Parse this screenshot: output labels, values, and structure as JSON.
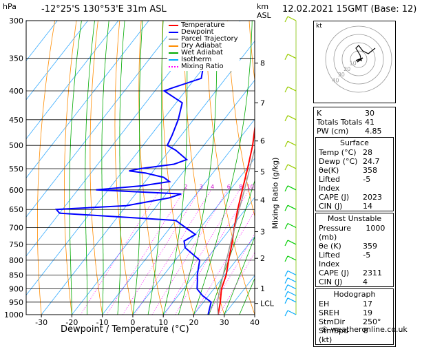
{
  "header": {
    "location": "-12°25'S  130°53'E  31m  ASL",
    "datetime": "12.02.2021  15GMT  (Base: 12)",
    "left_unit": "hPa",
    "right_unit_km": "km",
    "right_unit_asl": "ASL",
    "mixing_label": "Mixing Ratio (g/kg)",
    "xlabel": "Dewpoint / Temperature (°C)",
    "copyright": "© weatheronline.co.uk"
  },
  "legend": [
    {
      "label": "Temperature",
      "color": "#ff0000",
      "style": "solid"
    },
    {
      "label": "Dewpoint",
      "color": "#0000ff",
      "style": "solid"
    },
    {
      "label": "Parcel Trajectory",
      "color": "#999999",
      "style": "solid"
    },
    {
      "label": "Dry Adiabat",
      "color": "#ff8c00",
      "style": "solid"
    },
    {
      "label": "Wet Adiabat",
      "color": "#00aa00",
      "style": "solid"
    },
    {
      "label": "Isotherm",
      "color": "#00aaff",
      "style": "solid"
    },
    {
      "label": "Mixing Ratio",
      "color": "#ff00ff",
      "style": "dotted"
    }
  ],
  "chart_data": {
    "type": "line",
    "title": "Skew-T log-P",
    "pressure_levels": [
      300,
      350,
      400,
      450,
      500,
      550,
      600,
      650,
      700,
      750,
      800,
      850,
      900,
      950,
      1000
    ],
    "x_ticks": [
      -30,
      -20,
      -10,
      0,
      10,
      20,
      30,
      40
    ],
    "km_ticks": [
      {
        "label": "8",
        "p": 357
      },
      {
        "label": "7",
        "p": 420
      },
      {
        "label": "6",
        "p": 491
      },
      {
        "label": "5",
        "p": 557
      },
      {
        "label": "4",
        "p": 625
      },
      {
        "label": "3",
        "p": 712
      },
      {
        "label": "2",
        "p": 794
      },
      {
        "label": "1",
        "p": 898
      },
      {
        "label": "LCL",
        "p": 955
      }
    ],
    "mixing_ratio_labels": [
      {
        "label": "1",
        "w": 1
      },
      {
        "label": "2",
        "w": 2
      },
      {
        "label": "3",
        "w": 3
      },
      {
        "label": "4",
        "w": 4
      },
      {
        "label": "6",
        "w": 6
      },
      {
        "label": "8",
        "w": 8
      },
      {
        "label": "10",
        "w": 10
      },
      {
        "label": "15",
        "w": 15
      },
      {
        "label": "20",
        "w": 20
      },
      {
        "label": "25",
        "w": 25
      }
    ],
    "series": [
      {
        "name": "Temperature",
        "color": "#ff0000",
        "points": [
          [
            1000,
            28
          ],
          [
            950,
            25.5
          ],
          [
            900,
            22.5
          ],
          [
            850,
            20.5
          ],
          [
            800,
            17.5
          ],
          [
            750,
            14.5
          ],
          [
            700,
            11
          ],
          [
            650,
            7.5
          ],
          [
            600,
            4
          ],
          [
            550,
            0.3
          ],
          [
            500,
            -4
          ],
          [
            450,
            -9.5
          ],
          [
            400,
            -16
          ],
          [
            350,
            -22.5
          ],
          [
            320,
            -27.5
          ]
        ]
      },
      {
        "name": "Dewpoint",
        "color": "#0000ff",
        "points": [
          [
            1000,
            24.7
          ],
          [
            950,
            22.5
          ],
          [
            925,
            18
          ],
          [
            900,
            14.5
          ],
          [
            870,
            12.5
          ],
          [
            850,
            11
          ],
          [
            800,
            8
          ],
          [
            760,
            0
          ],
          [
            740,
            -2
          ],
          [
            720,
            0
          ],
          [
            700,
            -5
          ],
          [
            680,
            -10
          ],
          [
            660,
            -50
          ],
          [
            650,
            -52
          ],
          [
            640,
            -30
          ],
          [
            620,
            -18
          ],
          [
            610,
            -15
          ],
          [
            600,
            -44
          ],
          [
            590,
            -30
          ],
          [
            580,
            -22
          ],
          [
            570,
            -25
          ],
          [
            560,
            -32
          ],
          [
            555,
            -38
          ],
          [
            550,
            -35
          ],
          [
            540,
            -25
          ],
          [
            530,
            -22
          ],
          [
            510,
            -28
          ],
          [
            500,
            -32
          ],
          [
            480,
            -33
          ],
          [
            450,
            -35
          ],
          [
            420,
            -38
          ],
          [
            400,
            -47
          ],
          [
            395,
            -45
          ],
          [
            380,
            -38
          ],
          [
            350,
            -42
          ],
          [
            330,
            -46
          ],
          [
            320,
            -50
          ]
        ]
      },
      {
        "name": "Parcel Trajectory",
        "color": "#999999",
        "points": [
          [
            1000,
            28
          ],
          [
            955,
            24.8
          ],
          [
            900,
            22
          ],
          [
            850,
            19.5
          ],
          [
            800,
            16.8
          ],
          [
            750,
            14
          ],
          [
            700,
            11.2
          ],
          [
            650,
            8
          ],
          [
            600,
            4.7
          ],
          [
            550,
            1
          ],
          [
            500,
            -3
          ],
          [
            450,
            -7.5
          ],
          [
            400,
            -12.5
          ],
          [
            350,
            -18.5
          ],
          [
            320,
            -23
          ]
        ]
      }
    ],
    "wind_barbs_pressure": [
      1000,
      950,
      925,
      900,
      875,
      850,
      800,
      750,
      700,
      650,
      600,
      550,
      500,
      450,
      400,
      350,
      300
    ]
  },
  "indices": {
    "rows": [
      {
        "label": "K",
        "value": "30"
      },
      {
        "label": "Totals Totals",
        "value": "41"
      },
      {
        "label": "PW (cm)",
        "value": "4.85"
      }
    ]
  },
  "surface": {
    "title": "Surface",
    "rows": [
      {
        "label": "Temp (°C)",
        "value": "28"
      },
      {
        "label": "Dewp (°C)",
        "value": "24.7"
      },
      {
        "label": "θe(K)",
        "value": "358"
      },
      {
        "label": "Lifted Index",
        "value": "-5"
      },
      {
        "label": "CAPE (J)",
        "value": "2023"
      },
      {
        "label": "CIN (J)",
        "value": "14"
      }
    ]
  },
  "most_unstable": {
    "title": "Most Unstable",
    "rows": [
      {
        "label": "Pressure (mb)",
        "value": "1000"
      },
      {
        "label": "θe (K)",
        "value": "359"
      },
      {
        "label": "Lifted Index",
        "value": "-5"
      },
      {
        "label": "CAPE (J)",
        "value": "2311"
      },
      {
        "label": "CIN (J)",
        "value": "4"
      }
    ]
  },
  "hodograph": {
    "title": "Hodograph",
    "label": "kt",
    "ring_labels": [
      "10",
      "20",
      "30",
      "40"
    ],
    "rows": [
      {
        "label": "EH",
        "value": "17"
      },
      {
        "label": "SREH",
        "value": "19"
      },
      {
        "label": "StmDir",
        "value": "250°"
      },
      {
        "label": "StmSpd (kt)",
        "value": "8"
      }
    ]
  }
}
